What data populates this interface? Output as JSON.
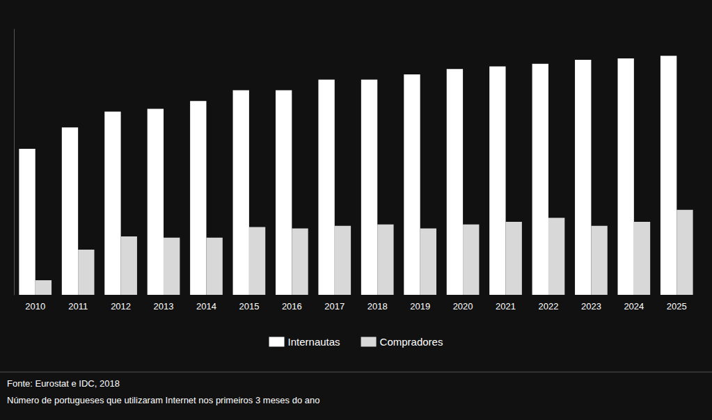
{
  "chart_data": {
    "type": "bar",
    "categories": [
      "2010",
      "2011",
      "2012",
      "2013",
      "2014",
      "2015",
      "2016",
      "2017",
      "2018",
      "2019",
      "2020",
      "2021",
      "2022",
      "2023",
      "2024",
      "2025"
    ],
    "series": [
      {
        "name": "Internautas",
        "color": "#ffffff",
        "values": [
          5.5,
          6.3,
          6.9,
          7.0,
          7.3,
          7.7,
          7.7,
          8.1,
          8.1,
          8.3,
          8.5,
          8.6,
          8.7,
          8.85,
          8.9,
          9.0
        ]
      },
      {
        "name": "Compradores",
        "color": "#d8d8d8",
        "values": [
          0.55,
          1.7,
          2.2,
          2.15,
          2.15,
          2.55,
          2.5,
          2.6,
          2.65,
          2.5,
          2.65,
          2.75,
          2.9,
          2.6,
          2.75,
          3.2
        ]
      }
    ],
    "ylim": [
      0,
      10
    ],
    "yticks": [],
    "tick_labels": "x",
    "grid": false,
    "legend": "bottom",
    "annotations": [
      "Fonte: Eurostat e IDC, 2018",
      "Número de portugueses que utilizaram Internet nos primeiros 3 meses do ano"
    ]
  }
}
